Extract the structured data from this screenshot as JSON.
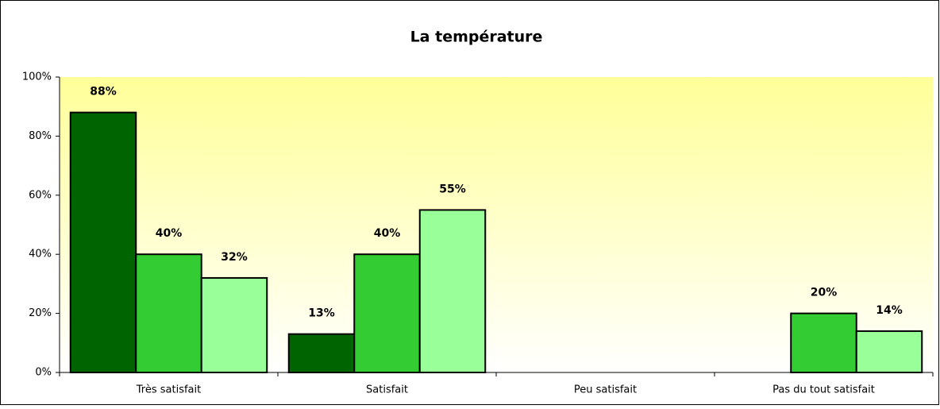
{
  "chart_data": {
    "type": "bar",
    "title": "La température",
    "categories": [
      "Très satisfait",
      "Satisfait",
      "Peu satisfait",
      "Pas du tout satisfait"
    ],
    "series": [
      {
        "color": "#006400",
        "values": [
          88,
          13,
          null,
          null
        ],
        "value_labels": [
          "88%",
          "13%",
          null,
          null
        ]
      },
      {
        "color": "#33cc33",
        "values": [
          40,
          40,
          null,
          20
        ],
        "value_labels": [
          "40%",
          "40%",
          null,
          "20%"
        ]
      },
      {
        "color": "#99ff99",
        "values": [
          32,
          55,
          null,
          14
        ],
        "value_labels": [
          "32%",
          "55%",
          null,
          "14%"
        ]
      }
    ],
    "ylim": [
      0,
      100
    ],
    "yticks": [
      {
        "value": 0,
        "label": "0%"
      },
      {
        "value": 20,
        "label": "20%"
      },
      {
        "value": 40,
        "label": "40%"
      },
      {
        "value": 60,
        "label": "60%"
      },
      {
        "value": 80,
        "label": "80%"
      },
      {
        "value": 100,
        "label": "100%"
      }
    ]
  }
}
